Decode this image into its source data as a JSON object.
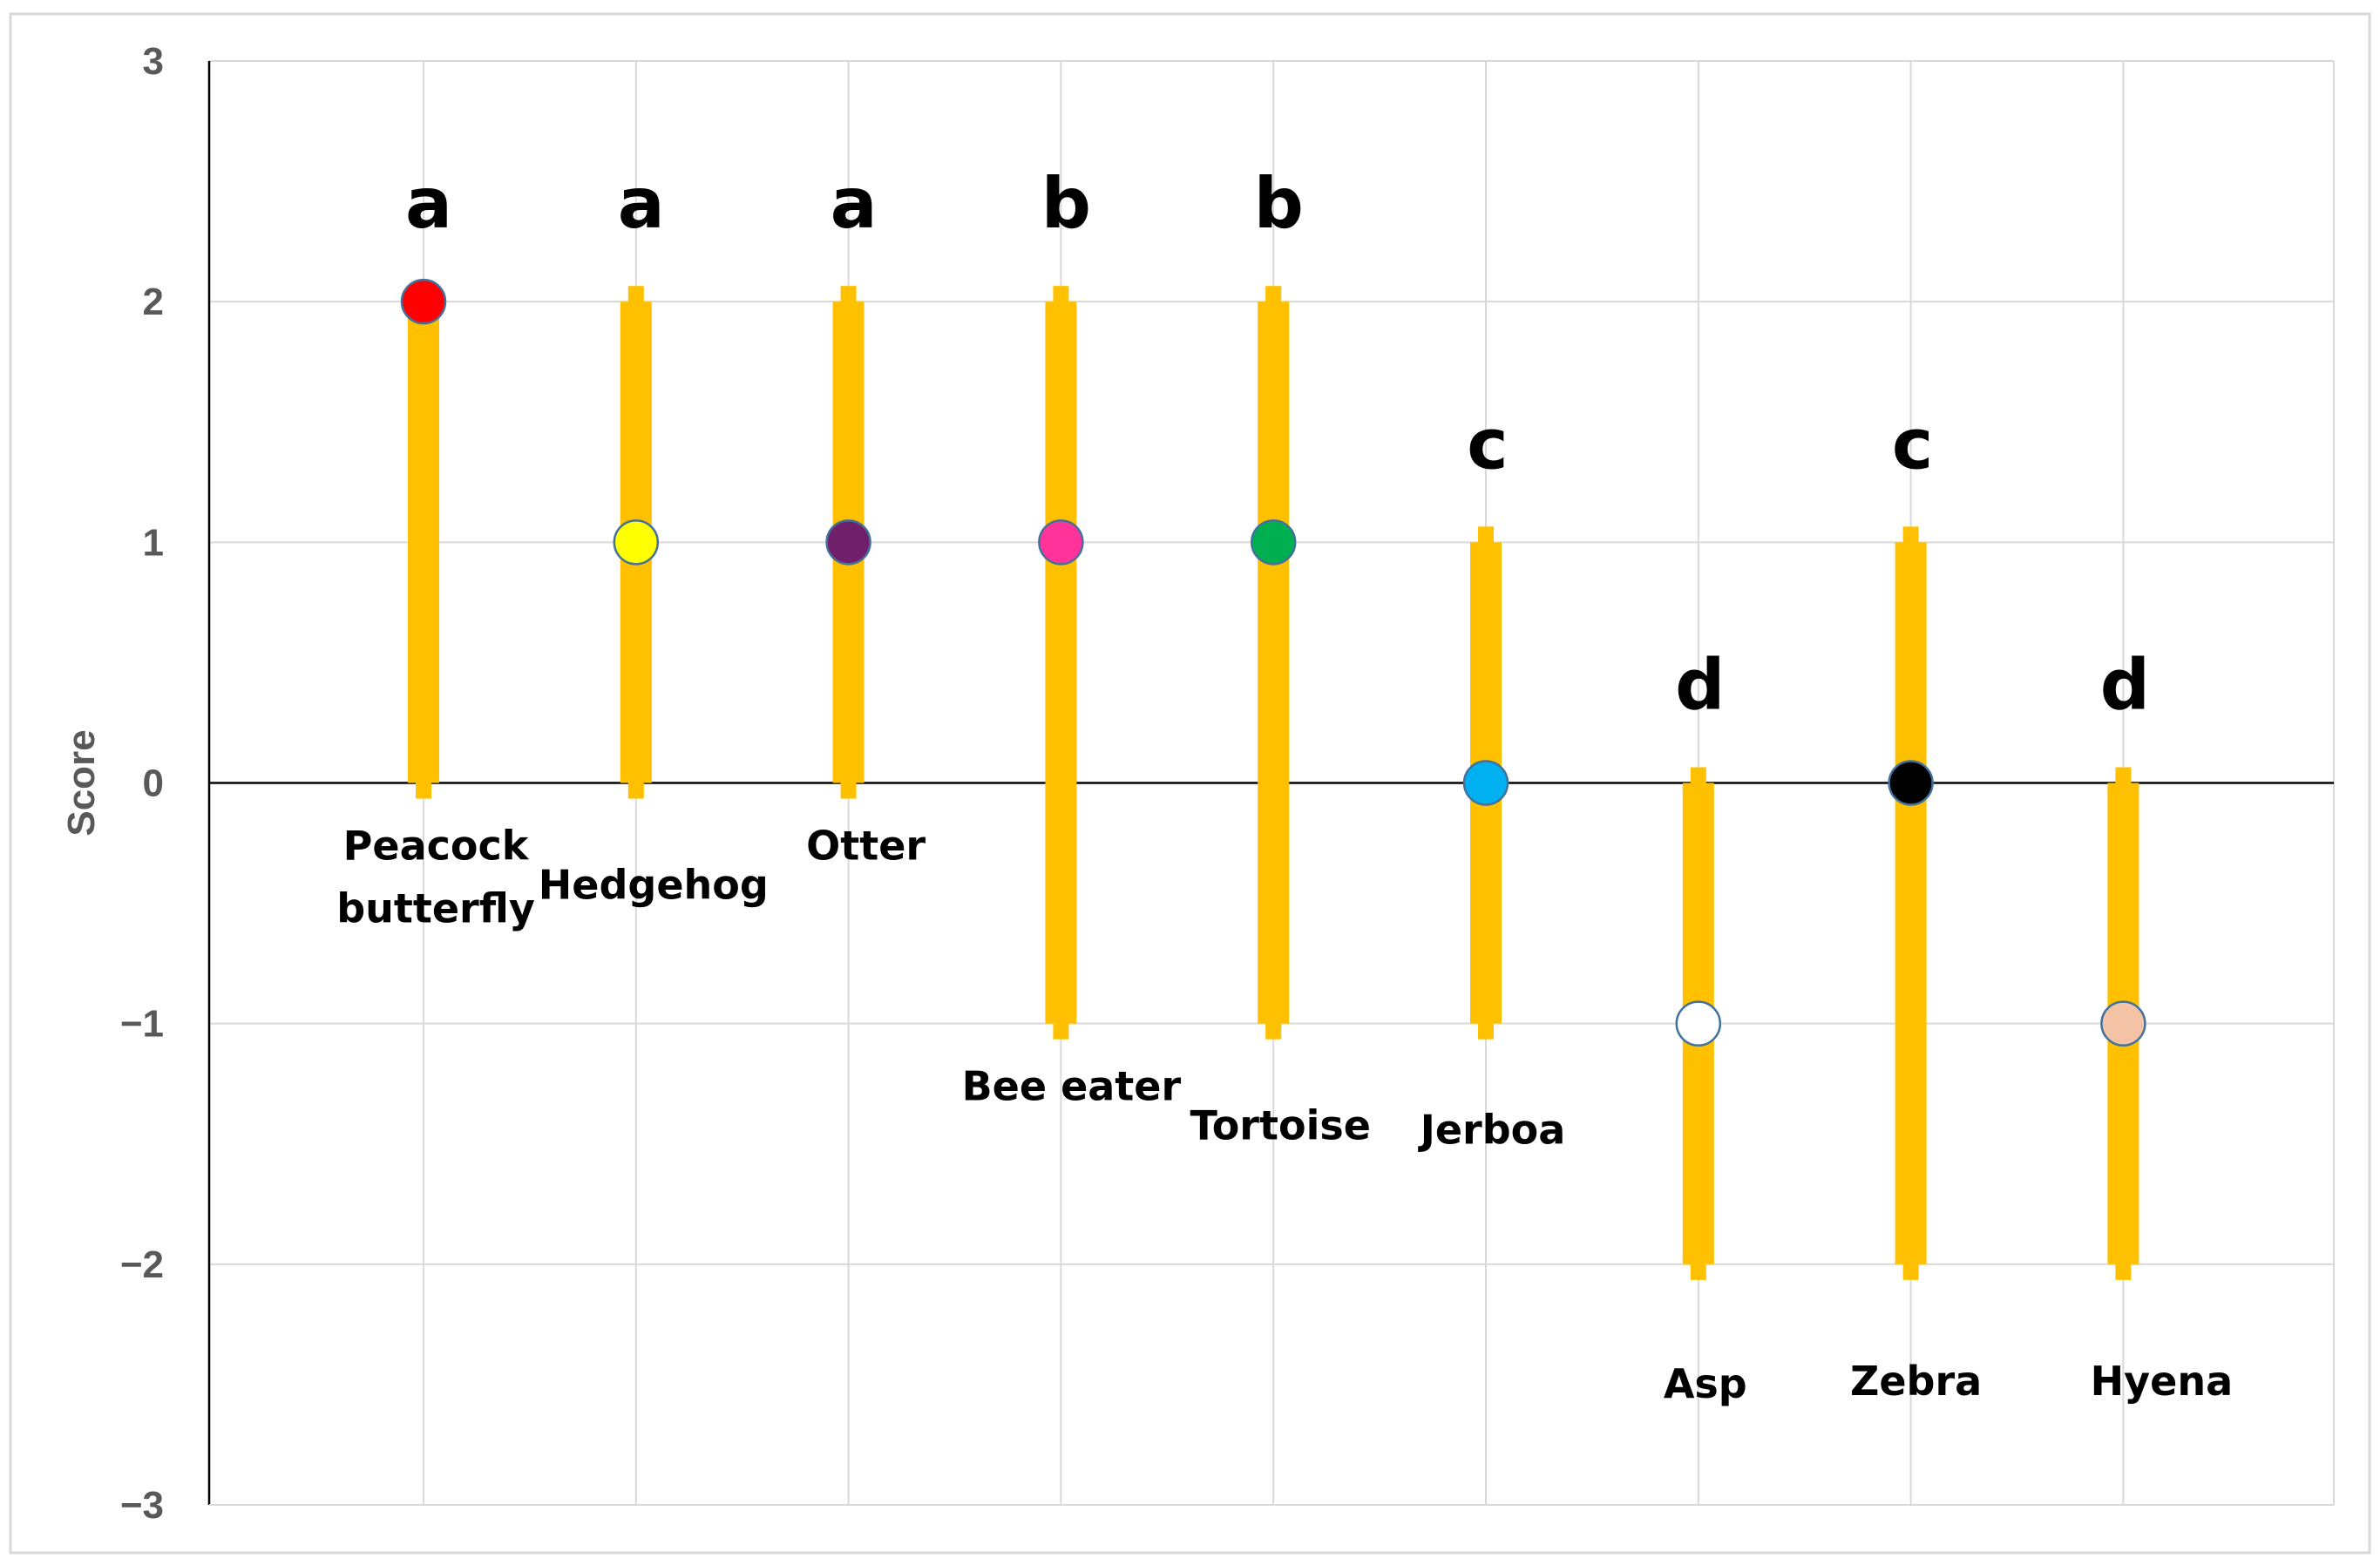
{
  "chart_data": {
    "type": "scatter",
    "title": "",
    "xlabel": "",
    "ylabel": "Score",
    "ylim": [
      -3,
      3
    ],
    "yticks": [
      "3",
      "2",
      "1",
      "0",
      "−1",
      "−2",
      "−3"
    ],
    "grid": true,
    "colors": {
      "bar": "#FFC000",
      "grid": "#D9D9D9",
      "frame": "#D9D9D9"
    },
    "categories": [
      {
        "name": "Peacock butterfly",
        "label_lines": [
          "Peacock",
          "butterfly"
        ],
        "value": 2,
        "low": 0,
        "high": 2,
        "group": "a",
        "color": "#FF0000"
      },
      {
        "name": "Hedgehog",
        "label_lines": [
          "Hedgehog"
        ],
        "value": 1,
        "low": 0,
        "high": 2,
        "group": "a",
        "color": "#FFFF00"
      },
      {
        "name": "Otter",
        "label_lines": [
          "Otter"
        ],
        "value": 1,
        "low": 0,
        "high": 2,
        "group": "a",
        "color": "#70206A"
      },
      {
        "name": "Bee eater",
        "label_lines": [
          "Bee eater"
        ],
        "value": 1,
        "low": -1,
        "high": 2,
        "group": "b",
        "color": "#FF3399"
      },
      {
        "name": "Tortoise",
        "label_lines": [
          "Tortoise"
        ],
        "value": 1,
        "low": -1,
        "high": 2,
        "group": "b",
        "color": "#00B050"
      },
      {
        "name": "Jerboa",
        "label_lines": [
          "Jerboa"
        ],
        "value": 0,
        "low": -1,
        "high": 1,
        "group": "c",
        "color": "#00B0F0"
      },
      {
        "name": "Asp",
        "label_lines": [
          "Asp"
        ],
        "value": -1,
        "low": -2,
        "high": 0,
        "group": "d",
        "color": "#FFFFFF"
      },
      {
        "name": "Zebra",
        "label_lines": [
          "Zebra"
        ],
        "value": 0,
        "low": -2,
        "high": 1,
        "group": "c",
        "color": "#000000"
      },
      {
        "name": "Hyena",
        "label_lines": [
          "Hyena"
        ],
        "value": -1,
        "low": -2,
        "high": 0,
        "group": "d",
        "color": "#F4C3A5"
      }
    ]
  }
}
